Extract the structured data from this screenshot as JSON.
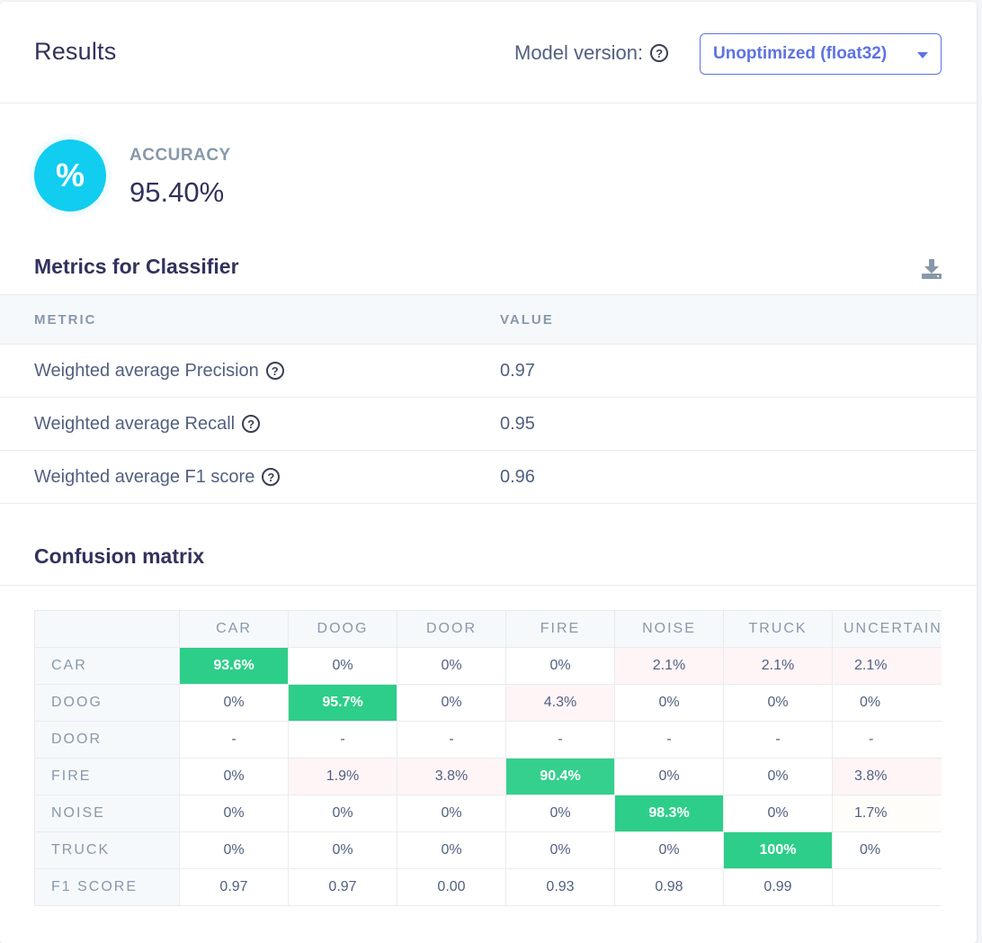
{
  "header": {
    "title": "Results",
    "model_label": "Model version:",
    "model_value": "Unoptimized (float32)"
  },
  "accuracy": {
    "label": "ACCURACY",
    "value": "95.40%",
    "symbol": "%"
  },
  "metrics": {
    "title": "Metrics for Classifier",
    "columns": [
      "METRIC",
      "VALUE"
    ],
    "rows": [
      {
        "name": "Weighted average Precision",
        "value": "0.97"
      },
      {
        "name": "Weighted average Recall",
        "value": "0.95"
      },
      {
        "name": "Weighted average F1 score",
        "value": "0.96"
      }
    ]
  },
  "confusion": {
    "title": "Confusion matrix",
    "columns": [
      "CAR",
      "DOOG",
      "DOOR",
      "FIRE",
      "NOISE",
      "TRUCK",
      "UNCERTAIN"
    ],
    "rows": [
      {
        "label": "CAR",
        "cells": [
          "93.6%",
          "0%",
          "0%",
          "0%",
          "2.1%",
          "2.1%",
          "2.1%"
        ]
      },
      {
        "label": "DOOG",
        "cells": [
          "0%",
          "95.7%",
          "0%",
          "4.3%",
          "0%",
          "0%",
          "0%"
        ]
      },
      {
        "label": "DOOR",
        "cells": [
          "-",
          "-",
          "-",
          "-",
          "-",
          "-",
          "-"
        ]
      },
      {
        "label": "FIRE",
        "cells": [
          "0%",
          "1.9%",
          "3.8%",
          "90.4%",
          "0%",
          "0%",
          "3.8%"
        ]
      },
      {
        "label": "NOISE",
        "cells": [
          "0%",
          "0%",
          "0%",
          "0%",
          "98.3%",
          "0%",
          "1.7%"
        ]
      },
      {
        "label": "TRUCK",
        "cells": [
          "0%",
          "0%",
          "0%",
          "0%",
          "0%",
          "100%",
          "0%"
        ]
      },
      {
        "label": "F1 SCORE",
        "cells": [
          "0.97",
          "0.97",
          "0.00",
          "0.93",
          "0.98",
          "0.99",
          ""
        ]
      }
    ]
  },
  "colors": {
    "accent": "#5e72e4",
    "accuracy_circle": "#11cdef",
    "highlight": "#2dce89",
    "light_pink": "#fff5f7"
  },
  "icons": {
    "help": "question-circle-icon",
    "download": "download-icon",
    "dropdown": "caret-down-icon"
  }
}
